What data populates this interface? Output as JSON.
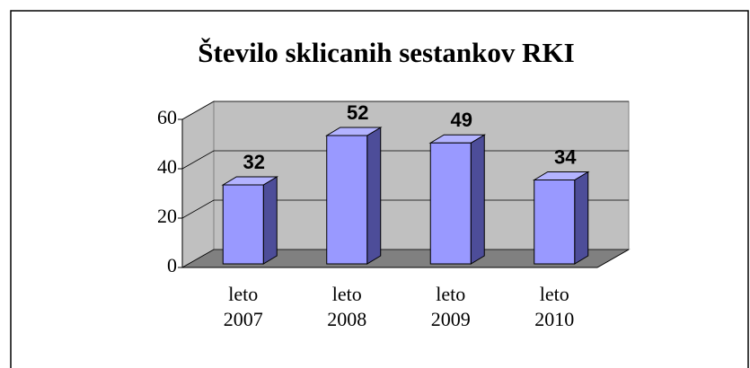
{
  "chart_data": {
    "type": "bar3d",
    "title": "Število sklicanih sestankov RKI",
    "categories": [
      "leto 2007",
      "leto 2008",
      "leto 2009",
      "leto 2010"
    ],
    "values": [
      32,
      52,
      49,
      34
    ],
    "color": "#9999ff",
    "ylim": [
      0,
      60
    ],
    "yticks": [
      0,
      20,
      40,
      60
    ],
    "grid": true
  }
}
